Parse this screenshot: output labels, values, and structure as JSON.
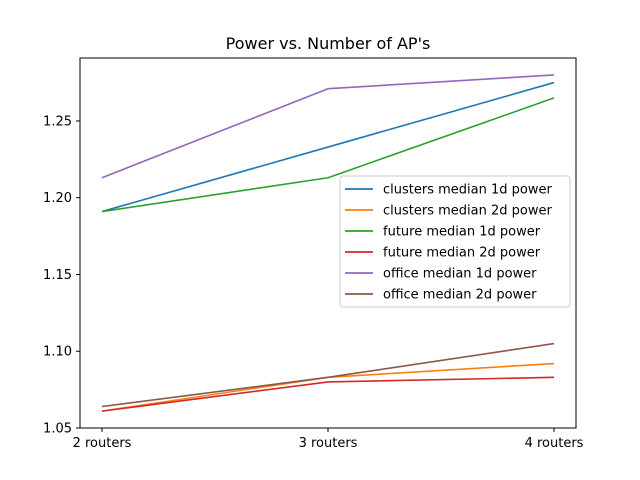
{
  "chart_data": {
    "type": "line",
    "title": "Power vs. Number of AP's",
    "xlabel": "",
    "ylabel": "",
    "categories": [
      "2 routers",
      "3 routers",
      "4 routers"
    ],
    "ylim": [
      1.05,
      1.291
    ],
    "yticks": [
      1.05,
      1.1,
      1.15,
      1.2,
      1.25
    ],
    "ytick_labels": [
      "1.05",
      "1.10",
      "1.15",
      "1.20",
      "1.25"
    ],
    "grid": false,
    "legend_position": "center-right",
    "series": [
      {
        "name": "clusters median 1d power",
        "color": "#1f77b4",
        "values": [
          1.191,
          1.233,
          1.275
        ]
      },
      {
        "name": "clusters median 2d power",
        "color": "#ff7f0e",
        "values": [
          1.061,
          1.083,
          1.092
        ]
      },
      {
        "name": "future median 1d power",
        "color": "#2ca02c",
        "values": [
          1.191,
          1.213,
          1.265
        ]
      },
      {
        "name": "future median 2d power",
        "color": "#d62728",
        "values": [
          1.061,
          1.08,
          1.083
        ]
      },
      {
        "name": "office median 1d power",
        "color": "#9467bd",
        "values": [
          1.213,
          1.271,
          1.28
        ]
      },
      {
        "name": "office median 2d power",
        "color": "#8c564b",
        "values": [
          1.064,
          1.083,
          1.105
        ]
      }
    ]
  }
}
